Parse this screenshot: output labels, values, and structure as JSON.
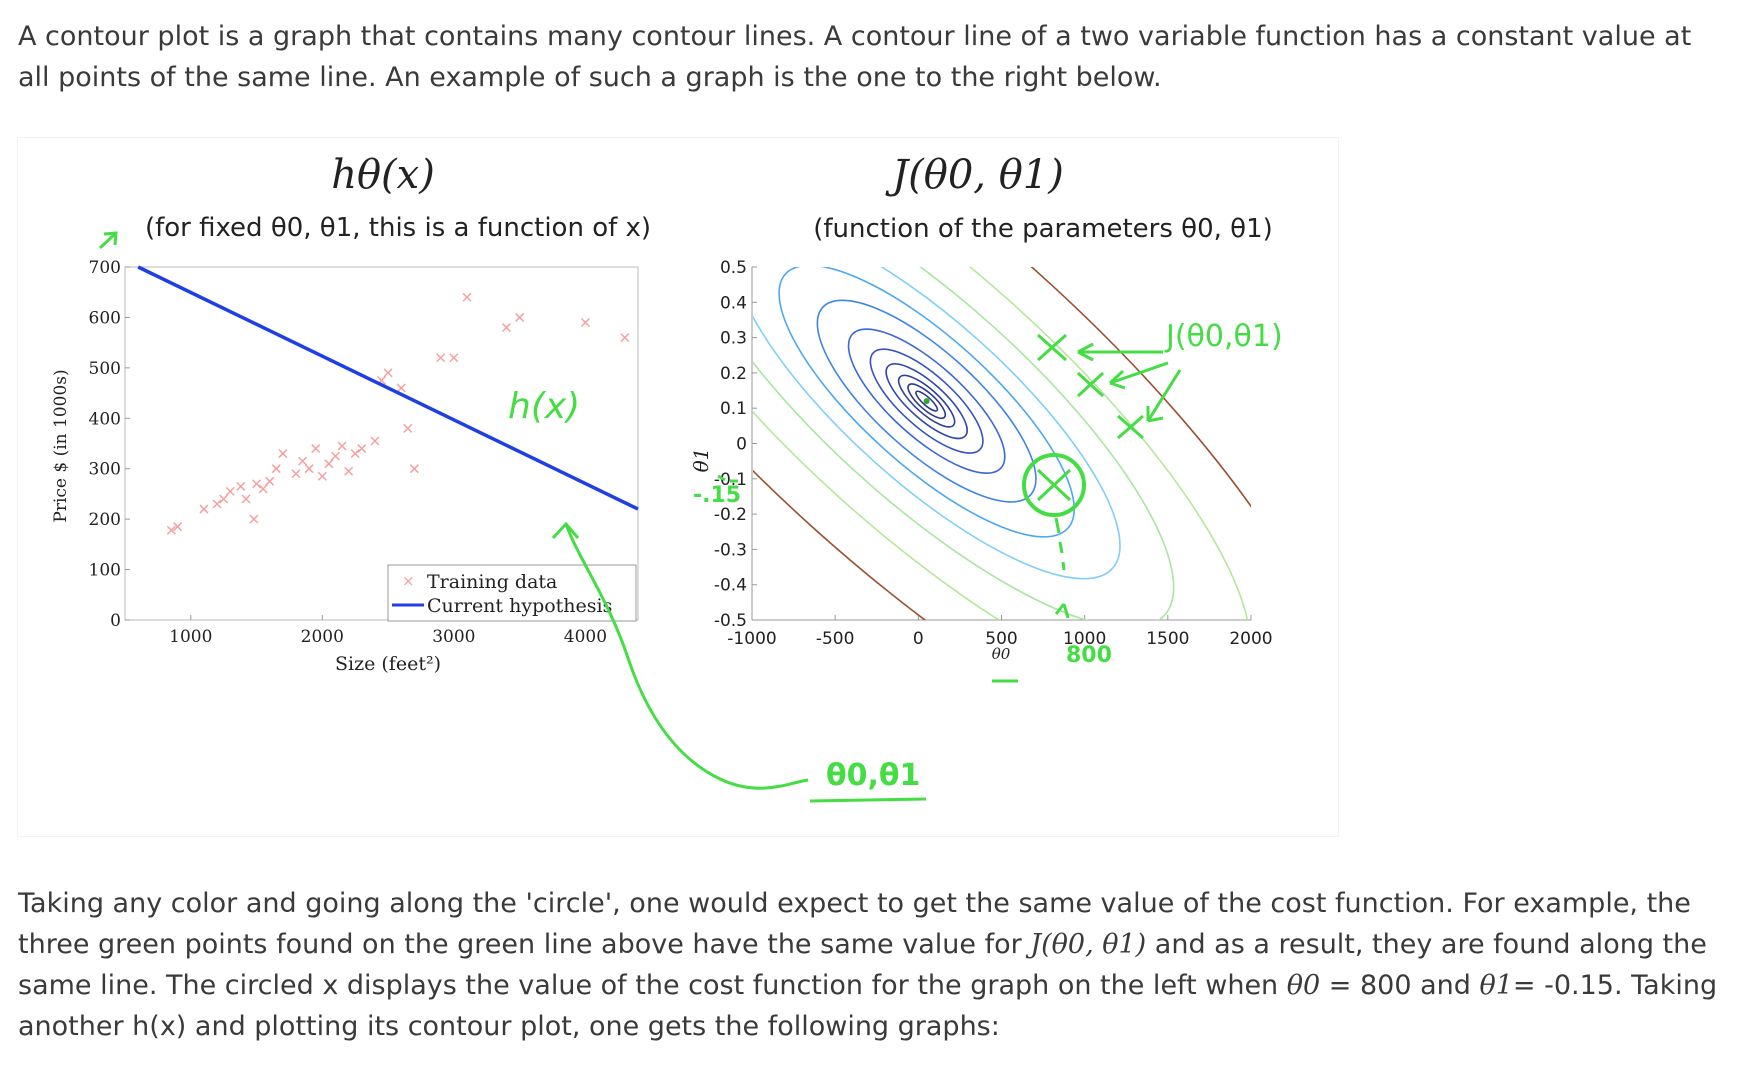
{
  "intro": {
    "text": "A contour plot is a graph that contains many contour lines. A contour line of a two variable function has a constant value at all points of the same line. An example of such a graph is the one to the right below."
  },
  "left_plot": {
    "title": "hθ(x)",
    "subtitle": "(for fixed θ0, θ1, this is a function of x)",
    "ylabel": "Price $ (in 1000s)",
    "xlabel": "Size (feet²)",
    "legend": [
      "Training data",
      "Current hypothesis"
    ],
    "annotation": "h(x)",
    "colors": {
      "data": "#f4a0a0",
      "hypothesis": "#1f3fe6",
      "ink": "#44dd44"
    },
    "chart_data": {
      "type": "scatter",
      "xlim": [
        500,
        4400
      ],
      "ylim": [
        0,
        700
      ],
      "x_ticks": [
        "1000",
        "2000",
        "3000",
        "4000"
      ],
      "y_ticks": [
        "0",
        "100",
        "200",
        "300",
        "400",
        "500",
        "600",
        "700"
      ],
      "series": [
        {
          "name": "Training data",
          "points": [
            [
              852,
              178
            ],
            [
              900,
              185
            ],
            [
              1100,
              220
            ],
            [
              1200,
              230
            ],
            [
              1250,
              240
            ],
            [
              1300,
              255
            ],
            [
              1380,
              265
            ],
            [
              1420,
              240
            ],
            [
              1480,
              200
            ],
            [
              1500,
              270
            ],
            [
              1550,
              260
            ],
            [
              1600,
              275
            ],
            [
              1650,
              300
            ],
            [
              1700,
              330
            ],
            [
              1800,
              290
            ],
            [
              1850,
              315
            ],
            [
              1900,
              300
            ],
            [
              1950,
              340
            ],
            [
              2000,
              285
            ],
            [
              2050,
              310
            ],
            [
              2100,
              325
            ],
            [
              2150,
              345
            ],
            [
              2200,
              295
            ],
            [
              2250,
              330
            ],
            [
              2300,
              340
            ],
            [
              2400,
              355
            ],
            [
              2450,
              475
            ],
            [
              2500,
              490
            ],
            [
              2600,
              460
            ],
            [
              2650,
              380
            ],
            [
              2700,
              300
            ],
            [
              2900,
              520
            ],
            [
              3000,
              520
            ],
            [
              3100,
              640
            ],
            [
              3400,
              580
            ],
            [
              3500,
              600
            ],
            [
              4000,
              590
            ],
            [
              4300,
              560
            ]
          ]
        },
        {
          "name": "Current hypothesis",
          "line": [
            [
              600,
              700
            ],
            [
              4400,
              220
            ]
          ]
        }
      ]
    }
  },
  "right_plot": {
    "title": "J(θ0, θ1)",
    "subtitle": "(function of the parameters θ0, θ1)",
    "xlabel": "θ0",
    "ylabel": "θ1",
    "annotations": {
      "cost": "J(θ0,θ1)",
      "params": "θ0,θ1",
      "x_mark": "800",
      "y_mark": "-.15"
    },
    "chart_data": {
      "type": "contour",
      "xlim": [
        -1000,
        2000
      ],
      "ylim": [
        -0.5,
        0.5
      ],
      "x_ticks": [
        "-1000",
        "-500",
        "0",
        "500",
        "1000",
        "1500",
        "2000"
      ],
      "y_ticks": [
        "0.5",
        "0.4",
        "0.3",
        "0.2",
        "0.1",
        "0",
        "-0.1",
        "-0.2",
        "-0.3",
        "-0.4",
        "-0.5"
      ],
      "minimum": [
        50,
        0.12
      ],
      "highlighted_point": [
        800,
        -0.15
      ]
    }
  },
  "outro": {
    "text_a": "Taking any color and going along the 'circle', one would expect to get the same value of the cost function. For example, the three green points found on the green line above have the same value for ",
    "math_a": "J(θ0, θ1)",
    "text_b": " and as a result, they are found along the same line. The circled x displays the value of the cost function for the graph on the left when ",
    "math_b": "θ0",
    "text_c": " = 800 and ",
    "math_c": "θ1",
    "text_d": "= -0.15. Taking another h(x) and plotting its contour plot, one gets the following graphs:"
  }
}
